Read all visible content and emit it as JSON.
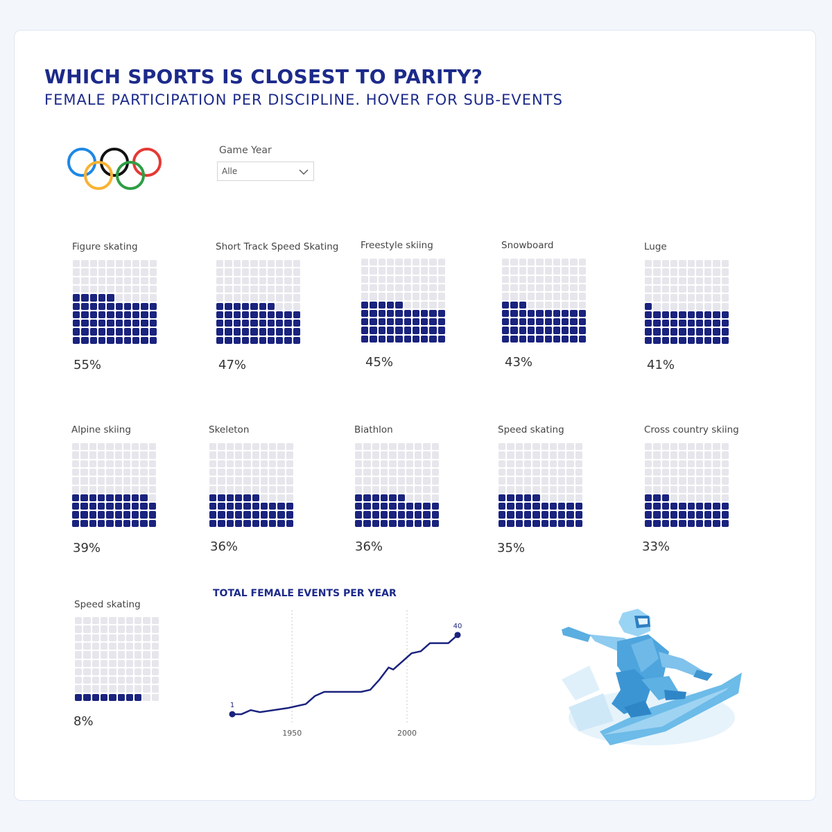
{
  "header": {
    "title": "WHICH SPORTS IS CLOSEST TO PARITY?",
    "subtitle": "FEMALE PARTICIPATION PER DISCIPLINE. HOVER FOR SUB-EVENTS"
  },
  "filter": {
    "label": "Game Year",
    "value": "Alle"
  },
  "colors": {
    "accent": "#1a237e",
    "title": "#1c2a8a",
    "empty_cell": "#e6e6ec"
  },
  "disciplines": [
    {
      "name": "Figure skating",
      "value": 55,
      "label": "55%"
    },
    {
      "name": "Short Track Speed Skating",
      "value": 47,
      "label": "47%"
    },
    {
      "name": "Freestyle skiing",
      "value": 45,
      "label": "45%"
    },
    {
      "name": "Snowboard",
      "value": 43,
      "label": "43%"
    },
    {
      "name": "Luge",
      "value": 41,
      "label": "41%"
    },
    {
      "name": "Alpine skiing",
      "value": 39,
      "label": "39%"
    },
    {
      "name": "Skeleton",
      "value": 36,
      "label": "36%"
    },
    {
      "name": "Biathlon",
      "value": 36,
      "label": "36%"
    },
    {
      "name": "Speed skating",
      "value": 35,
      "label": "35%"
    },
    {
      "name": "Cross country skiing",
      "value": 33,
      "label": "33%"
    },
    {
      "name": "Speed skating",
      "value": 8,
      "label": "8%"
    }
  ],
  "chart_data": {
    "type": "line",
    "title": "TOTAL FEMALE EVENTS PER YEAR",
    "xlabel": "",
    "ylabel": "",
    "xlim": [
      1924,
      2022
    ],
    "ylim": [
      0,
      42
    ],
    "xticks": [
      1950,
      2000
    ],
    "x": [
      1924,
      1928,
      1932,
      1936,
      1948,
      1952,
      1956,
      1960,
      1964,
      1968,
      1972,
      1976,
      1980,
      1984,
      1988,
      1992,
      1994,
      1998,
      2002,
      2006,
      2010,
      2014,
      2018,
      2022
    ],
    "values": [
      1,
      1,
      3,
      2,
      4,
      5,
      6,
      10,
      12,
      12,
      12,
      12,
      12,
      13,
      18,
      24,
      23,
      27,
      31,
      32,
      36,
      36,
      36,
      40
    ],
    "start_label": "1",
    "end_label": "40"
  }
}
